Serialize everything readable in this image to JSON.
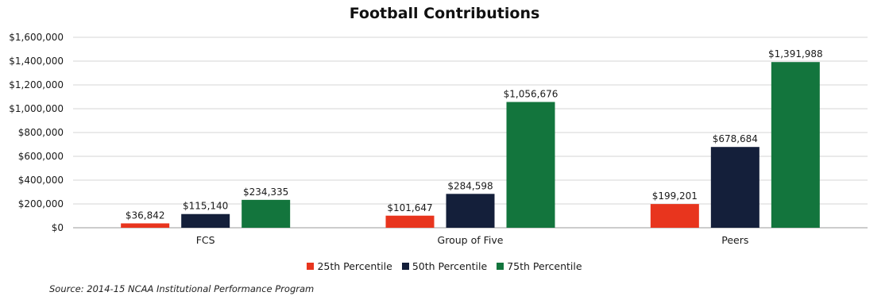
{
  "chart_data": {
    "type": "bar",
    "title": "Football Contributions",
    "xlabel": "",
    "ylabel": "",
    "categories": [
      "FCS",
      "Group of Five",
      "Peers"
    ],
    "series": [
      {
        "name": "25th Percentile",
        "color": "#e8351e",
        "values": [
          36842,
          101647,
          199201
        ],
        "labels": [
          "$36,842",
          "$101,647",
          "$199,201"
        ]
      },
      {
        "name": "50th Percentile",
        "color": "#141f3a",
        "values": [
          115140,
          284598,
          678684
        ],
        "labels": [
          "$115,140",
          "$284,598",
          "$678,684"
        ]
      },
      {
        "name": "75th Percentile",
        "color": "#13753d",
        "values": [
          234335,
          1056676,
          1391988
        ],
        "labels": [
          "$234,335",
          "$1,056,676",
          "$1,391,988"
        ]
      }
    ],
    "ylim": [
      0,
      1600000
    ],
    "yticks": [
      0,
      200000,
      400000,
      600000,
      800000,
      1000000,
      1200000,
      1400000,
      1600000
    ],
    "ytick_labels": [
      "$0",
      "$200,000",
      "$400,000",
      "$600,000",
      "$800,000",
      "$1,000,000",
      "$1,200,000",
      "$1,400,000",
      "$1,600,000"
    ],
    "grid": true,
    "legend_position": "bottom"
  },
  "source_note": "Source: 2014-15 NCAA Institutional Performance Program"
}
